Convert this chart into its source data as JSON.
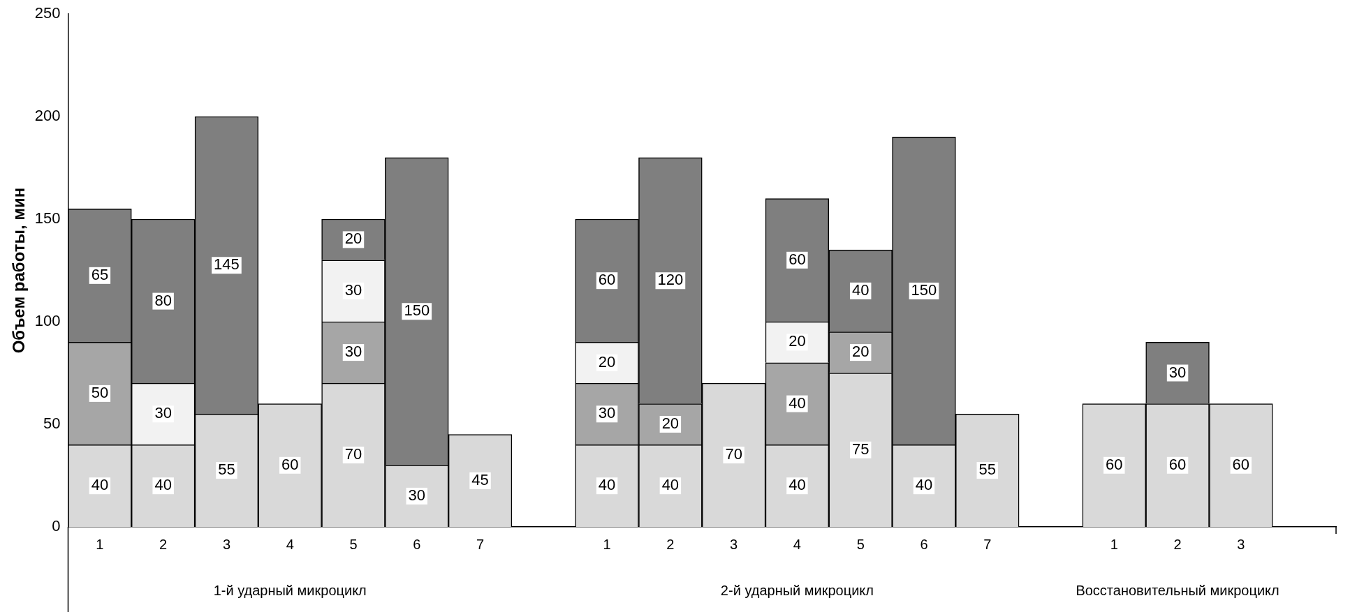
{
  "chart_data": {
    "type": "bar",
    "stacked": true,
    "ylabel": "Объем работы, мин",
    "categories": [
      "1",
      "2",
      "3",
      "4",
      "5",
      "6",
      "7",
      null,
      "1",
      "2",
      "3",
      "4",
      "5",
      "6",
      "7",
      null,
      "1",
      "2",
      "3",
      null
    ],
    "series": [
      {
        "color": "#d9d9d9",
        "values": [
          40,
          40,
          55,
          60,
          70,
          30,
          45,
          null,
          40,
          40,
          70,
          40,
          75,
          40,
          55,
          null,
          60,
          60,
          60,
          null
        ]
      },
      {
        "color": "#a6a6a6",
        "values": [
          50,
          null,
          null,
          null,
          30,
          null,
          null,
          null,
          30,
          20,
          null,
          40,
          20,
          null,
          null,
          null,
          null,
          null,
          null,
          null
        ]
      },
      {
        "color": "#f2f2f2",
        "values": [
          null,
          30,
          null,
          null,
          30,
          null,
          null,
          null,
          20,
          null,
          null,
          20,
          null,
          null,
          null,
          null,
          null,
          null,
          null,
          null
        ]
      },
      {
        "color": "#7f7f7f",
        "values": [
          65,
          80,
          145,
          null,
          20,
          150,
          null,
          null,
          60,
          120,
          null,
          60,
          40,
          150,
          null,
          null,
          null,
          30,
          null,
          null
        ]
      }
    ],
    "data_labels": true,
    "ylim": [
      0,
      250
    ],
    "yticks": [
      0,
      50,
      100,
      150,
      200,
      250
    ],
    "grid": false,
    "legend": false,
    "annotations": [
      "1-й ударный микроцикл",
      "2-й ударный микроцикл",
      "Восстановительный микроцикл"
    ]
  }
}
